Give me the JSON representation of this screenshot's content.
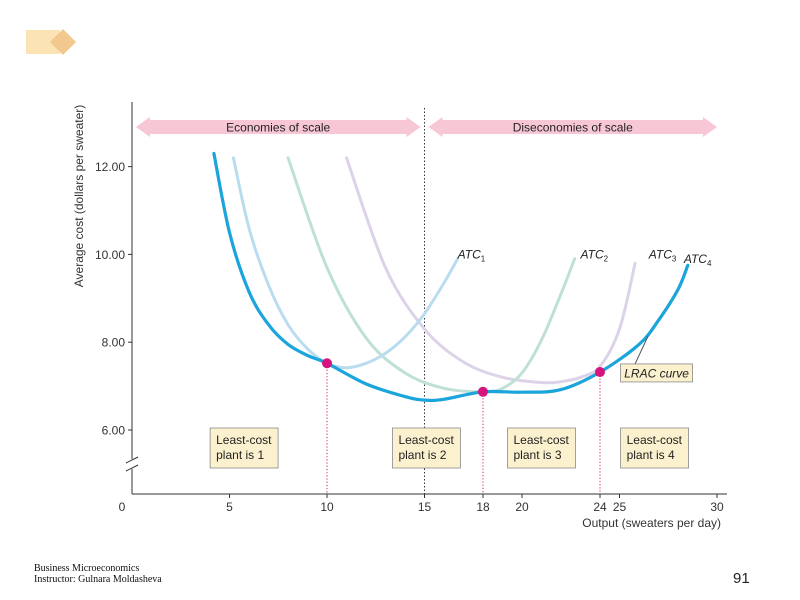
{
  "slide": {
    "footer_line1": "Business Microeconomics",
    "footer_line2": "Instructor: Gulnara Moldasheva",
    "page_number": "91"
  },
  "colors": {
    "lrac": "#1aa5dc",
    "atc1": "#b9dcef",
    "atc2": "#bfe0d4",
    "atc3": "#ddd3e9",
    "atc4": "#f7c9d6",
    "band": "#f8c7d6",
    "box_fill": "#fbf1cf",
    "point": "#d6147e",
    "logo_light": "#fbe3b3",
    "logo_dark": "#f2c88e"
  },
  "chart_data": {
    "type": "line",
    "xlabel": "Output (sweaters per day)",
    "ylabel": "Average cost (dollars per sweater)",
    "xlim": [
      0,
      30
    ],
    "ylim": [
      6,
      12
    ],
    "x_ticks": [
      {
        "value": 0,
        "label": "0",
        "highlight": false
      },
      {
        "value": 5,
        "label": "5",
        "highlight": false
      },
      {
        "value": 10,
        "label": "10",
        "highlight": true
      },
      {
        "value": 15,
        "label": "15",
        "highlight": false
      },
      {
        "value": 18,
        "label": "18",
        "highlight": true
      },
      {
        "value": 20,
        "label": "20",
        "highlight": false
      },
      {
        "value": 24,
        "label": "24",
        "highlight": true
      },
      {
        "value": 25,
        "label": "25",
        "highlight": false
      },
      {
        "value": 30,
        "label": "30",
        "highlight": false
      }
    ],
    "y_ticks": [
      {
        "value": 6,
        "label": "6.00"
      },
      {
        "value": 8,
        "label": "8.00"
      },
      {
        "value": 10,
        "label": "10.00"
      },
      {
        "value": 12,
        "label": "12.00"
      }
    ],
    "axis_break": true,
    "divider_x": 15,
    "regions": [
      {
        "label": "Economies of scale",
        "from": 0.2,
        "to": 15
      },
      {
        "label": "Diseconomies of scale",
        "from": 15,
        "to": 30
      }
    ],
    "series": [
      {
        "name": "ATC1",
        "label_main": "ATC",
        "label_sub": "1",
        "label_at": [
          16.7,
          10.0
        ],
        "x": [
          5.2,
          6,
          7,
          8,
          9,
          10,
          11,
          12,
          13,
          14,
          15,
          16,
          16.7
        ],
        "y": [
          12.2,
          10.6,
          9.3,
          8.4,
          7.85,
          7.52,
          7.42,
          7.52,
          7.75,
          8.12,
          8.65,
          9.35,
          9.9
        ]
      },
      {
        "name": "ATC2",
        "label_main": "ATC",
        "label_sub": "2",
        "label_at": [
          23.0,
          10.0
        ],
        "x": [
          8,
          10,
          12,
          14,
          16,
          18,
          19,
          20,
          21,
          22,
          22.7
        ],
        "y": [
          12.2,
          9.7,
          8.1,
          7.3,
          6.95,
          6.87,
          6.95,
          7.3,
          8.05,
          9.1,
          9.9
        ]
      },
      {
        "name": "ATC3",
        "label_main": "ATC",
        "label_sub": "3",
        "label_at": [
          26.5,
          10.0
        ],
        "x": [
          11,
          13,
          15,
          17,
          19,
          21,
          22,
          23,
          24,
          25,
          25.8
        ],
        "y": [
          12.2,
          9.7,
          8.3,
          7.55,
          7.2,
          7.08,
          7.1,
          7.2,
          7.45,
          8.3,
          9.8
        ]
      },
      {
        "name": "ATC4",
        "label_main": "ATC",
        "label_sub": "4",
        "label_at": [
          28.3,
          9.9
        ],
        "x": [
          4.2,
          5,
          6,
          7,
          8,
          9,
          10,
          12,
          14,
          15,
          16,
          18,
          20,
          22,
          24,
          26,
          27,
          28,
          28.5
        ],
        "y": [
          12.3,
          10.5,
          9.15,
          8.4,
          7.95,
          7.7,
          7.52,
          7.05,
          6.76,
          6.68,
          6.7,
          6.87,
          6.86,
          6.92,
          7.32,
          7.95,
          8.5,
          9.2,
          9.75
        ]
      },
      {
        "name": "LRAC",
        "label": "LRAC curve",
        "label_at": [
          26.8,
          7.3
        ],
        "x": [
          4.2,
          5,
          6,
          7,
          8,
          9,
          10,
          12,
          14,
          15,
          16,
          18,
          20,
          22,
          24,
          26,
          27,
          28,
          28.5
        ],
        "y": [
          12.3,
          10.5,
          9.15,
          8.4,
          7.95,
          7.7,
          7.52,
          7.05,
          6.76,
          6.68,
          6.7,
          6.87,
          6.86,
          6.92,
          7.32,
          7.95,
          8.5,
          9.2,
          9.75
        ]
      }
    ],
    "points": [
      {
        "x": 10,
        "y": 7.52
      },
      {
        "x": 18,
        "y": 6.87
      },
      {
        "x": 24,
        "y": 7.32
      }
    ],
    "boxes": [
      {
        "lines": [
          "Least-cost",
          "plant is 1"
        ],
        "center_x": 5.75
      },
      {
        "lines": [
          "Least-cost",
          "plant is 2"
        ],
        "center_x": 15.1
      },
      {
        "lines": [
          "Least-cost",
          "plant is 3"
        ],
        "center_x": 21.0
      },
      {
        "lines": [
          "Least-cost",
          "plant is 4"
        ],
        "center_x": 26.8
      }
    ]
  }
}
